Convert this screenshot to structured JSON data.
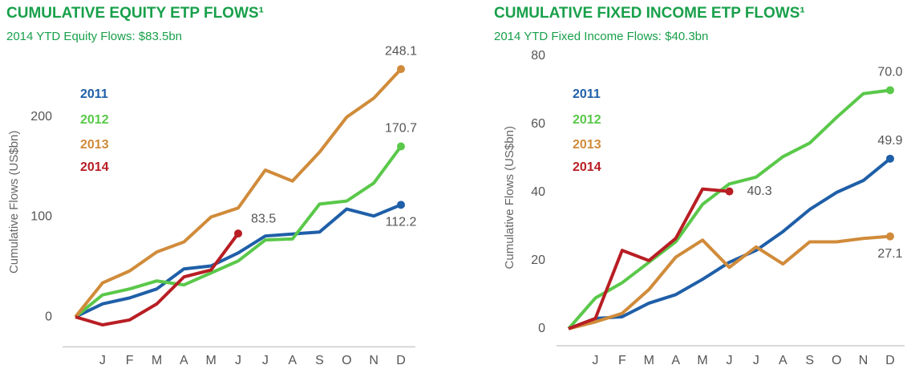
{
  "chart_data": [
    {
      "type": "line",
      "title": "CUMULATIVE EQUITY ETP FLOWS¹",
      "subtitle": "2014 YTD Equity Flows: $83.5bn",
      "y_label": "Cumulative Flows (US$bn)",
      "categories": [
        null,
        "J",
        "F",
        "M",
        "A",
        "M",
        "J",
        "J",
        "A",
        "S",
        "O",
        "N",
        "D"
      ],
      "ylim": [
        -30,
        260
      ],
      "yticks": [
        0,
        100,
        200
      ],
      "grid": false,
      "series": [
        {
          "name": "2011",
          "color": "#1f5fa8",
          "values": [
            0,
            13,
            19,
            28,
            48,
            51,
            64,
            81,
            83,
            85,
            108,
            101,
            112.2
          ],
          "value_labels": [
            null,
            null,
            null,
            null,
            null,
            null,
            null,
            null,
            null,
            null,
            null,
            null,
            "112.2"
          ]
        },
        {
          "name": "2012",
          "color": "#5ac84a",
          "values": [
            0,
            22,
            28,
            36,
            32,
            44,
            56,
            77,
            78,
            113,
            116,
            134,
            170.7
          ],
          "value_labels": [
            null,
            null,
            null,
            null,
            null,
            null,
            null,
            null,
            null,
            null,
            null,
            null,
            "170.7"
          ]
        },
        {
          "name": "2013",
          "color": "#d08b3a",
          "values": [
            0,
            34,
            46,
            65,
            75,
            100,
            109,
            147,
            136,
            165,
            200,
            219,
            248.1
          ],
          "value_labels": [
            null,
            null,
            null,
            null,
            null,
            null,
            null,
            null,
            null,
            null,
            null,
            null,
            "248.1"
          ]
        },
        {
          "name": "2014",
          "color": "#b81e24",
          "values": [
            0,
            -8,
            -3,
            13,
            40,
            47,
            83.5,
            null,
            null,
            null,
            null,
            null,
            null
          ],
          "value_labels": [
            null,
            null,
            null,
            null,
            null,
            null,
            "83.5",
            null,
            null,
            null,
            null,
            null,
            null
          ]
        }
      ]
    },
    {
      "type": "line",
      "title": "CUMULATIVE FIXED INCOME ETP FLOWS¹",
      "subtitle": "2014 YTD Fixed Income Flows: $40.3bn",
      "y_label": "Cumulative Flows (US$bn)",
      "categories": [
        null,
        "J",
        "F",
        "M",
        "A",
        "M",
        "J",
        "J",
        "A",
        "S",
        "O",
        "N",
        "D"
      ],
      "ylim": [
        -5,
        82
      ],
      "yticks": [
        0,
        20,
        40,
        60,
        80
      ],
      "grid": false,
      "series": [
        {
          "name": "2011",
          "color": "#1f5fa8",
          "values": [
            0,
            3,
            3.5,
            7.5,
            10,
            14.5,
            19.5,
            23,
            28.5,
            35,
            40,
            43.5,
            49.9
          ],
          "value_labels": [
            null,
            null,
            null,
            null,
            null,
            null,
            null,
            null,
            null,
            null,
            null,
            null,
            "49.9"
          ]
        },
        {
          "name": "2012",
          "color": "#5ac84a",
          "values": [
            0,
            9,
            13.5,
            19.5,
            25.5,
            36.5,
            42.5,
            44.5,
            50.5,
            54.5,
            62,
            69,
            70
          ],
          "value_labels": [
            null,
            null,
            null,
            null,
            null,
            null,
            null,
            null,
            null,
            null,
            null,
            null,
            "70.0"
          ]
        },
        {
          "name": "2013",
          "color": "#d08b3a",
          "values": [
            0,
            2,
            4.5,
            11.5,
            21,
            26,
            18,
            24,
            19,
            25.5,
            25.5,
            26.5,
            27.1
          ],
          "value_labels": [
            null,
            null,
            null,
            null,
            null,
            null,
            null,
            null,
            null,
            null,
            null,
            null,
            "27.1"
          ]
        },
        {
          "name": "2014",
          "color": "#b81e24",
          "values": [
            0,
            3,
            23,
            20,
            26.5,
            41,
            40.3,
            null,
            null,
            null,
            null,
            null,
            null
          ],
          "value_labels": [
            null,
            null,
            null,
            null,
            null,
            null,
            "40.3",
            null,
            null,
            null,
            null,
            null,
            null
          ]
        }
      ]
    }
  ]
}
